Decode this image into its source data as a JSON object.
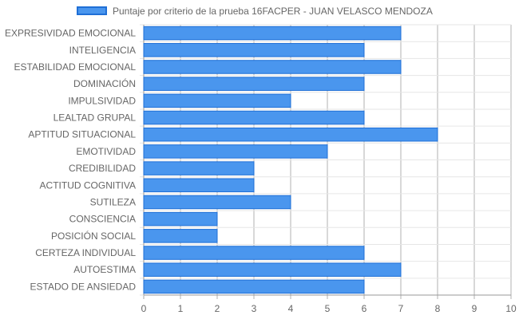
{
  "legend": {
    "label": "Puntaje por criterio de la prueba 16FACPER - JUAN VELASCO MENDOZA",
    "bar_color": "#4a96ee",
    "border_color": "#1f6fd6"
  },
  "chart_data": {
    "type": "bar",
    "orientation": "horizontal",
    "title": "",
    "xlabel": "",
    "ylabel": "",
    "xlim": [
      0,
      10
    ],
    "x_ticks": [
      "0",
      "1",
      "2",
      "3",
      "4",
      "5",
      "6",
      "7",
      "8",
      "9",
      "10"
    ],
    "grid": true,
    "legend_position": "top",
    "series": [
      {
        "name": "Puntaje por criterio de la prueba 16FACPER - JUAN VELASCO MENDOZA",
        "values": [
          7,
          6,
          7,
          6,
          4,
          6,
          8,
          5,
          3,
          3,
          4,
          2,
          2,
          6,
          7,
          6
        ]
      }
    ],
    "categories": [
      "EXPRESIVIDAD EMOCIONAL",
      "INTELIGENCIA",
      "ESTABILIDAD EMOCIONAL",
      "DOMINACIÓN",
      "IMPULSIVIDAD",
      "LEALTAD GRUPAL",
      "APTITUD SITUACIONAL",
      "EMOTIVIDAD",
      "CREDIBILIDAD",
      "ACTITUD COGNITIVA",
      "SUTILEZA",
      "CONSCIENCIA",
      "POSICIÓN SOCIAL",
      "CERTEZA INDIVIDUAL",
      "AUTOESTIMA",
      "ESTADO DE ANSIEDAD"
    ]
  }
}
